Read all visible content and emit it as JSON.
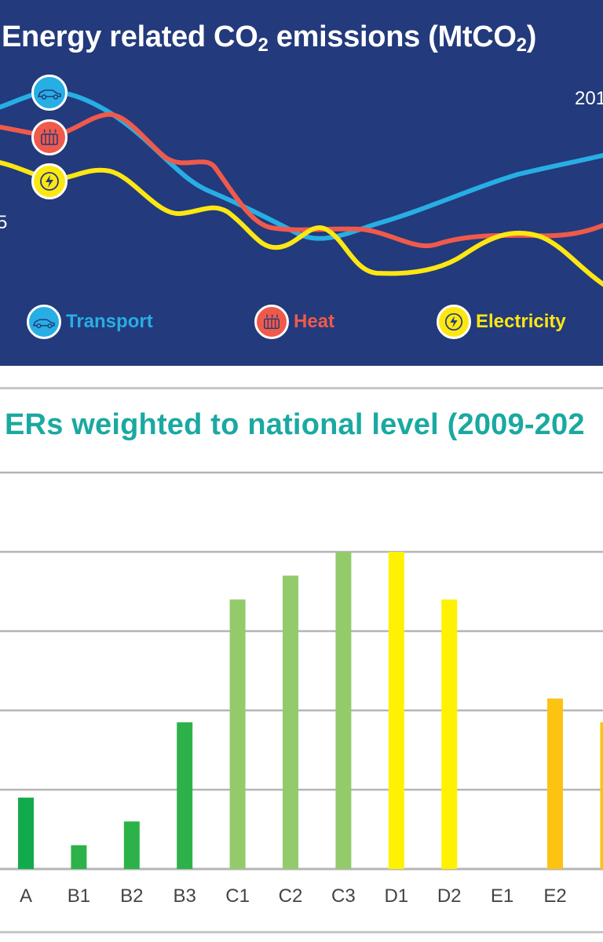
{
  "top_panel": {
    "title_main": "Energy related CO",
    "title_sub1": "2",
    "title_mid": " emissions (MtCO",
    "title_sub2": "2",
    "title_end": ")",
    "year_label": "201",
    "axis_fragment": "5",
    "background": "#233a7c",
    "legend": [
      {
        "label": "Transport",
        "color": "#27aee4",
        "icon": "car-icon"
      },
      {
        "label": "Heat",
        "color": "#ef5a4b",
        "icon": "radiator-icon"
      },
      {
        "label": "Electricity",
        "color": "#fde713",
        "icon": "lightning-icon"
      }
    ]
  },
  "chart_data": [
    {
      "type": "line",
      "title": "Energy related CO2 emissions (MtCO2)",
      "series": [
        {
          "name": "Transport",
          "color": "#27aee4"
        },
        {
          "name": "Heat",
          "color": "#ef5a4b"
        },
        {
          "name": "Electricity",
          "color": "#fde713"
        }
      ]
    },
    {
      "type": "bar",
      "title": "ERs weighted to national level (2009-202",
      "categories": [
        "A",
        "B1",
        "B2",
        "B3",
        "C1",
        "C2",
        "C3",
        "D1",
        "D2",
        "E1",
        "E2",
        ""
      ],
      "values": [
        0.9,
        0.3,
        0.6,
        1.85,
        3.4,
        3.7,
        4.0,
        4.0,
        3.4,
        0.0,
        2.15,
        1.85
      ],
      "colors": [
        "#12ab4b",
        "#2db24a",
        "#2db24a",
        "#2db24a",
        "#93cb6b",
        "#93cb6b",
        "#93cb6b",
        "#fff200",
        "#fff200",
        "#fcc312",
        "#fcc312",
        "#fcc312"
      ],
      "ylim": [
        0,
        5
      ],
      "gridlines": 5,
      "grid": true
    }
  ]
}
